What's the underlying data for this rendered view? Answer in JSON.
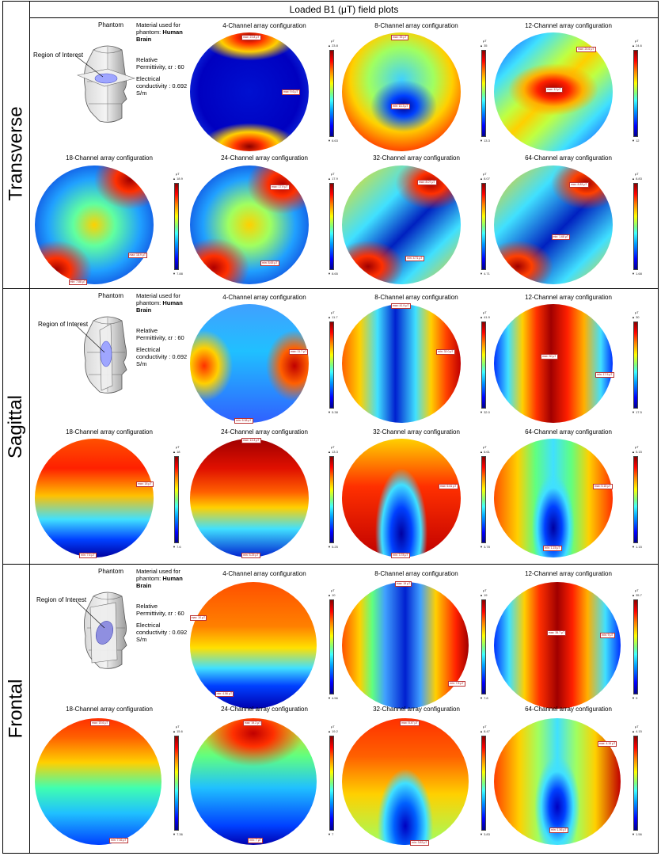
{
  "header": {
    "title": "Loaded B1 (μT) field plots"
  },
  "sections": [
    {
      "label": "Transverse",
      "phantom": {
        "title": "Phantom",
        "roi_label": "Region of Interest",
        "material_label": "Material used for phantom:",
        "material_value": "Human Brain",
        "permittivity": "Relative Permittivity, εr : 60",
        "conductivity": "Electrical conductivity : 0.692 S/m"
      },
      "panels": [
        {
          "title": "4-Channel array configuration",
          "cmax": "▲ 23.8",
          "cmin": "▼ 6.63",
          "unit": "μT",
          "probes": [
            "max: 23.8 μT",
            "max: 9.6 μT"
          ]
        },
        {
          "title": "8-Channel array configuration",
          "cmax": "▲ 35",
          "cmin": "▼ 13.3",
          "unit": "μT",
          "probes": [
            "max: 35 μT",
            "min: 13.3 μT"
          ]
        },
        {
          "title": "12-Channel array configuration",
          "cmax": "▲ 24.6",
          "cmin": "▼ 12",
          "unit": "μT",
          "probes": [
            "max: 24.6 μT",
            "max: 12 μT"
          ]
        },
        {
          "title": "18-Channel array configuration",
          "cmax": "▲ 18.9",
          "cmin": "▼ 7.88",
          "unit": "μT",
          "probes": [
            "max: 18.9 μT",
            "min: 7.88 μT"
          ]
        },
        {
          "title": "24-Channel array configuration",
          "cmax": "▲ 17.9",
          "cmin": "▼ 8.65",
          "unit": "μT",
          "probes": [
            "max: 17.9 μT",
            "min: 8.65 μT"
          ]
        },
        {
          "title": "32-Channel array configuration",
          "cmax": "▲ 8.07",
          "cmin": "▼ 4.71",
          "unit": "μT",
          "probes": [
            "max: 8.07 μT",
            "min: 4.71 μT"
          ]
        },
        {
          "title": "64-Channel array configuration",
          "cmax": "▲ 8.83",
          "cmin": "▼ 1.68",
          "unit": "μT",
          "probes": [
            "max: 8.83 μT",
            "min: 1.68 μT"
          ]
        }
      ]
    },
    {
      "label": "Sagittal",
      "phantom": {
        "title": "Phantom",
        "roi_label": "Region of Interest",
        "material_label": "Material used for phantom:",
        "material_value": "Human Brain",
        "permittivity": "Relative Permittivity, εr : 60",
        "conductivity": "Electrical conductivity : 0.692 S/m"
      },
      "panels": [
        {
          "title": "4-Channel array configuration",
          "cmax": "▲ 11.7",
          "cmin": "▼ 5.38",
          "unit": "μT",
          "probes": [
            "max: 11.7 μT",
            "min: 5.38 μT"
          ]
        },
        {
          "title": "8-Channel array configuration",
          "cmax": "▲ 41.9",
          "cmin": "▼ 32.0",
          "unit": "μT",
          "probes": [
            "max: 41.9 μT",
            "min: 32.0 μT"
          ]
        },
        {
          "title": "12-Channel array configuration",
          "cmax": "▲ 30",
          "cmin": "▼ 17.5",
          "unit": "μT",
          "probes": [
            "max: 30 μT",
            "min: 17.5 μT"
          ]
        },
        {
          "title": "18-Channel array configuration",
          "cmax": "▲ 18",
          "cmin": "▼ 7.6",
          "unit": "μT",
          "probes": [
            "max: 18 μT",
            "min: 7.6 μT"
          ]
        },
        {
          "title": "24-Channel array configuration",
          "cmax": "▲ 13.3",
          "cmin": "▼ 5.25",
          "unit": "μT",
          "probes": [
            "max: 13.3 μT",
            "min: 5.25 μT"
          ]
        },
        {
          "title": "32-Channel array configuration",
          "cmax": "▲ 6.61",
          "cmin": "▼ 3.78",
          "unit": "μT",
          "probes": [
            "max: 6.61 μT",
            "min: 3.78 μT"
          ]
        },
        {
          "title": "64-Channel array configuration",
          "cmax": "▲ 5.15",
          "cmin": "▼ 1.15",
          "unit": "μT",
          "probes": [
            "max: 5.15 μT",
            "min: 1.15 μT"
          ]
        }
      ]
    },
    {
      "label": "Frontal",
      "phantom": {
        "title": "Phantom",
        "roi_label": "Region of Interest",
        "material_label": "Material used for phantom:",
        "material_value": "Human Brain",
        "permittivity": "Relative Permittivity, εr : 60",
        "conductivity": "Electrical conductivity : 0.692 S/m"
      },
      "panels": [
        {
          "title": "4-Channel array configuration",
          "cmax": "▲ 10",
          "cmin": "▼ 4.56",
          "unit": "μT",
          "probes": [
            "max: 10 μT",
            "min: 4.56 μT"
          ]
        },
        {
          "title": "8-Channel array configuration",
          "cmax": "▲ 19",
          "cmin": "▼ 7.8",
          "unit": "μT",
          "probes": [
            "max: 19 μT",
            "min: 7.8 μT"
          ]
        },
        {
          "title": "12-Channel array configuration",
          "cmax": "▲ 35.7",
          "cmin": "▼ 9",
          "unit": "μT",
          "probes": [
            "max: 35.7 μT",
            "min: 9 μT"
          ]
        },
        {
          "title": "18-Channel array configuration",
          "cmax": "▲ 15.6",
          "cmin": "▼ 7.36",
          "unit": "μT",
          "probes": [
            "max: 15.6 μT",
            "min: 7.36 μT"
          ]
        },
        {
          "title": "24-Channel array configuration",
          "cmax": "▲ 19.2",
          "cmin": "▼ 7",
          "unit": "μT",
          "probes": [
            "max: 19.2 μT",
            "min: 7 μT"
          ]
        },
        {
          "title": "32-Channel array configuration",
          "cmax": "▲ 8.47",
          "cmin": "▼ 3.83",
          "unit": "μT",
          "probes": [
            "max: 8.47 μT",
            "min: 3.83 μT"
          ]
        },
        {
          "title": "64-Channel array configuration",
          "cmax": "▲ 4.15",
          "cmin": "▼ 1.56",
          "unit": "μT",
          "probes": [
            "max: 4.15 μT",
            "min: 1.56 μT"
          ]
        }
      ]
    }
  ]
}
